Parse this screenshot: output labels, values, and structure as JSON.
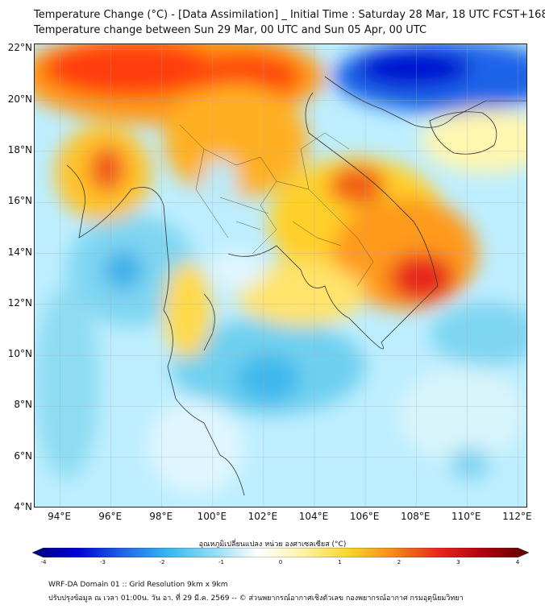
{
  "title": {
    "line1": "Temperature Change (°C) - [Data Assimilation] _ Initial Time : Saturday 28 Mar, 18 UTC FCST+168",
    "line2": "Temperature change between Sun 29 Mar, 00 UTC and Sun 05 Apr, 00 UTC"
  },
  "map": {
    "lat_labels": [
      "22°N",
      "20°N",
      "18°N",
      "16°N",
      "14°N",
      "12°N",
      "10°N",
      "8°N",
      "6°N",
      "4°N"
    ],
    "lon_labels": [
      "94°E",
      "96°E",
      "98°E",
      "100°E",
      "102°E",
      "104°E",
      "106°E",
      "108°E",
      "110°E",
      "112°E"
    ],
    "lat_values": [
      22,
      20,
      18,
      16,
      14,
      12,
      10,
      8,
      6,
      4
    ],
    "lon_values": [
      94,
      96,
      98,
      100,
      102,
      104,
      106,
      108,
      110,
      112
    ],
    "lat_range": [
      4,
      22.2
    ],
    "lon_range": [
      93,
      112.4
    ]
  },
  "colorbar": {
    "label": "อุณหภูมิเปลี่ยนแปลง หน่วย องศาเซลเซียส (°C)",
    "ticks": [
      "-4",
      "-3",
      "-2",
      "-1",
      "0",
      "1",
      "2",
      "3",
      "4"
    ],
    "tick_values": [
      -4,
      -3,
      -2,
      -1,
      0,
      1,
      2,
      3,
      4
    ],
    "range": [
      -4,
      4
    ],
    "colors": [
      "#00007a",
      "#0000d8",
      "#1f63e8",
      "#37b7f0",
      "#8fdcf4",
      "#ffffff",
      "#fff3a6",
      "#f7d82b",
      "#f48a1a",
      "#e8271a",
      "#b00010",
      "#5a0000"
    ]
  },
  "footer": {
    "line1": "WRF-DA Domain 01 :: Grid Resolution 9km x 9km",
    "line2": "ปรับปรุงข้อมูล ณ เวลา 01:00น. วัน อา. ที่ 29 มี.ค. 2569 -- © ส่วนพยากรณ์อากาศเชิงตัวเลข กองพยากรณ์อากาศ กรมอุตุนิยมวิทยา"
  }
}
